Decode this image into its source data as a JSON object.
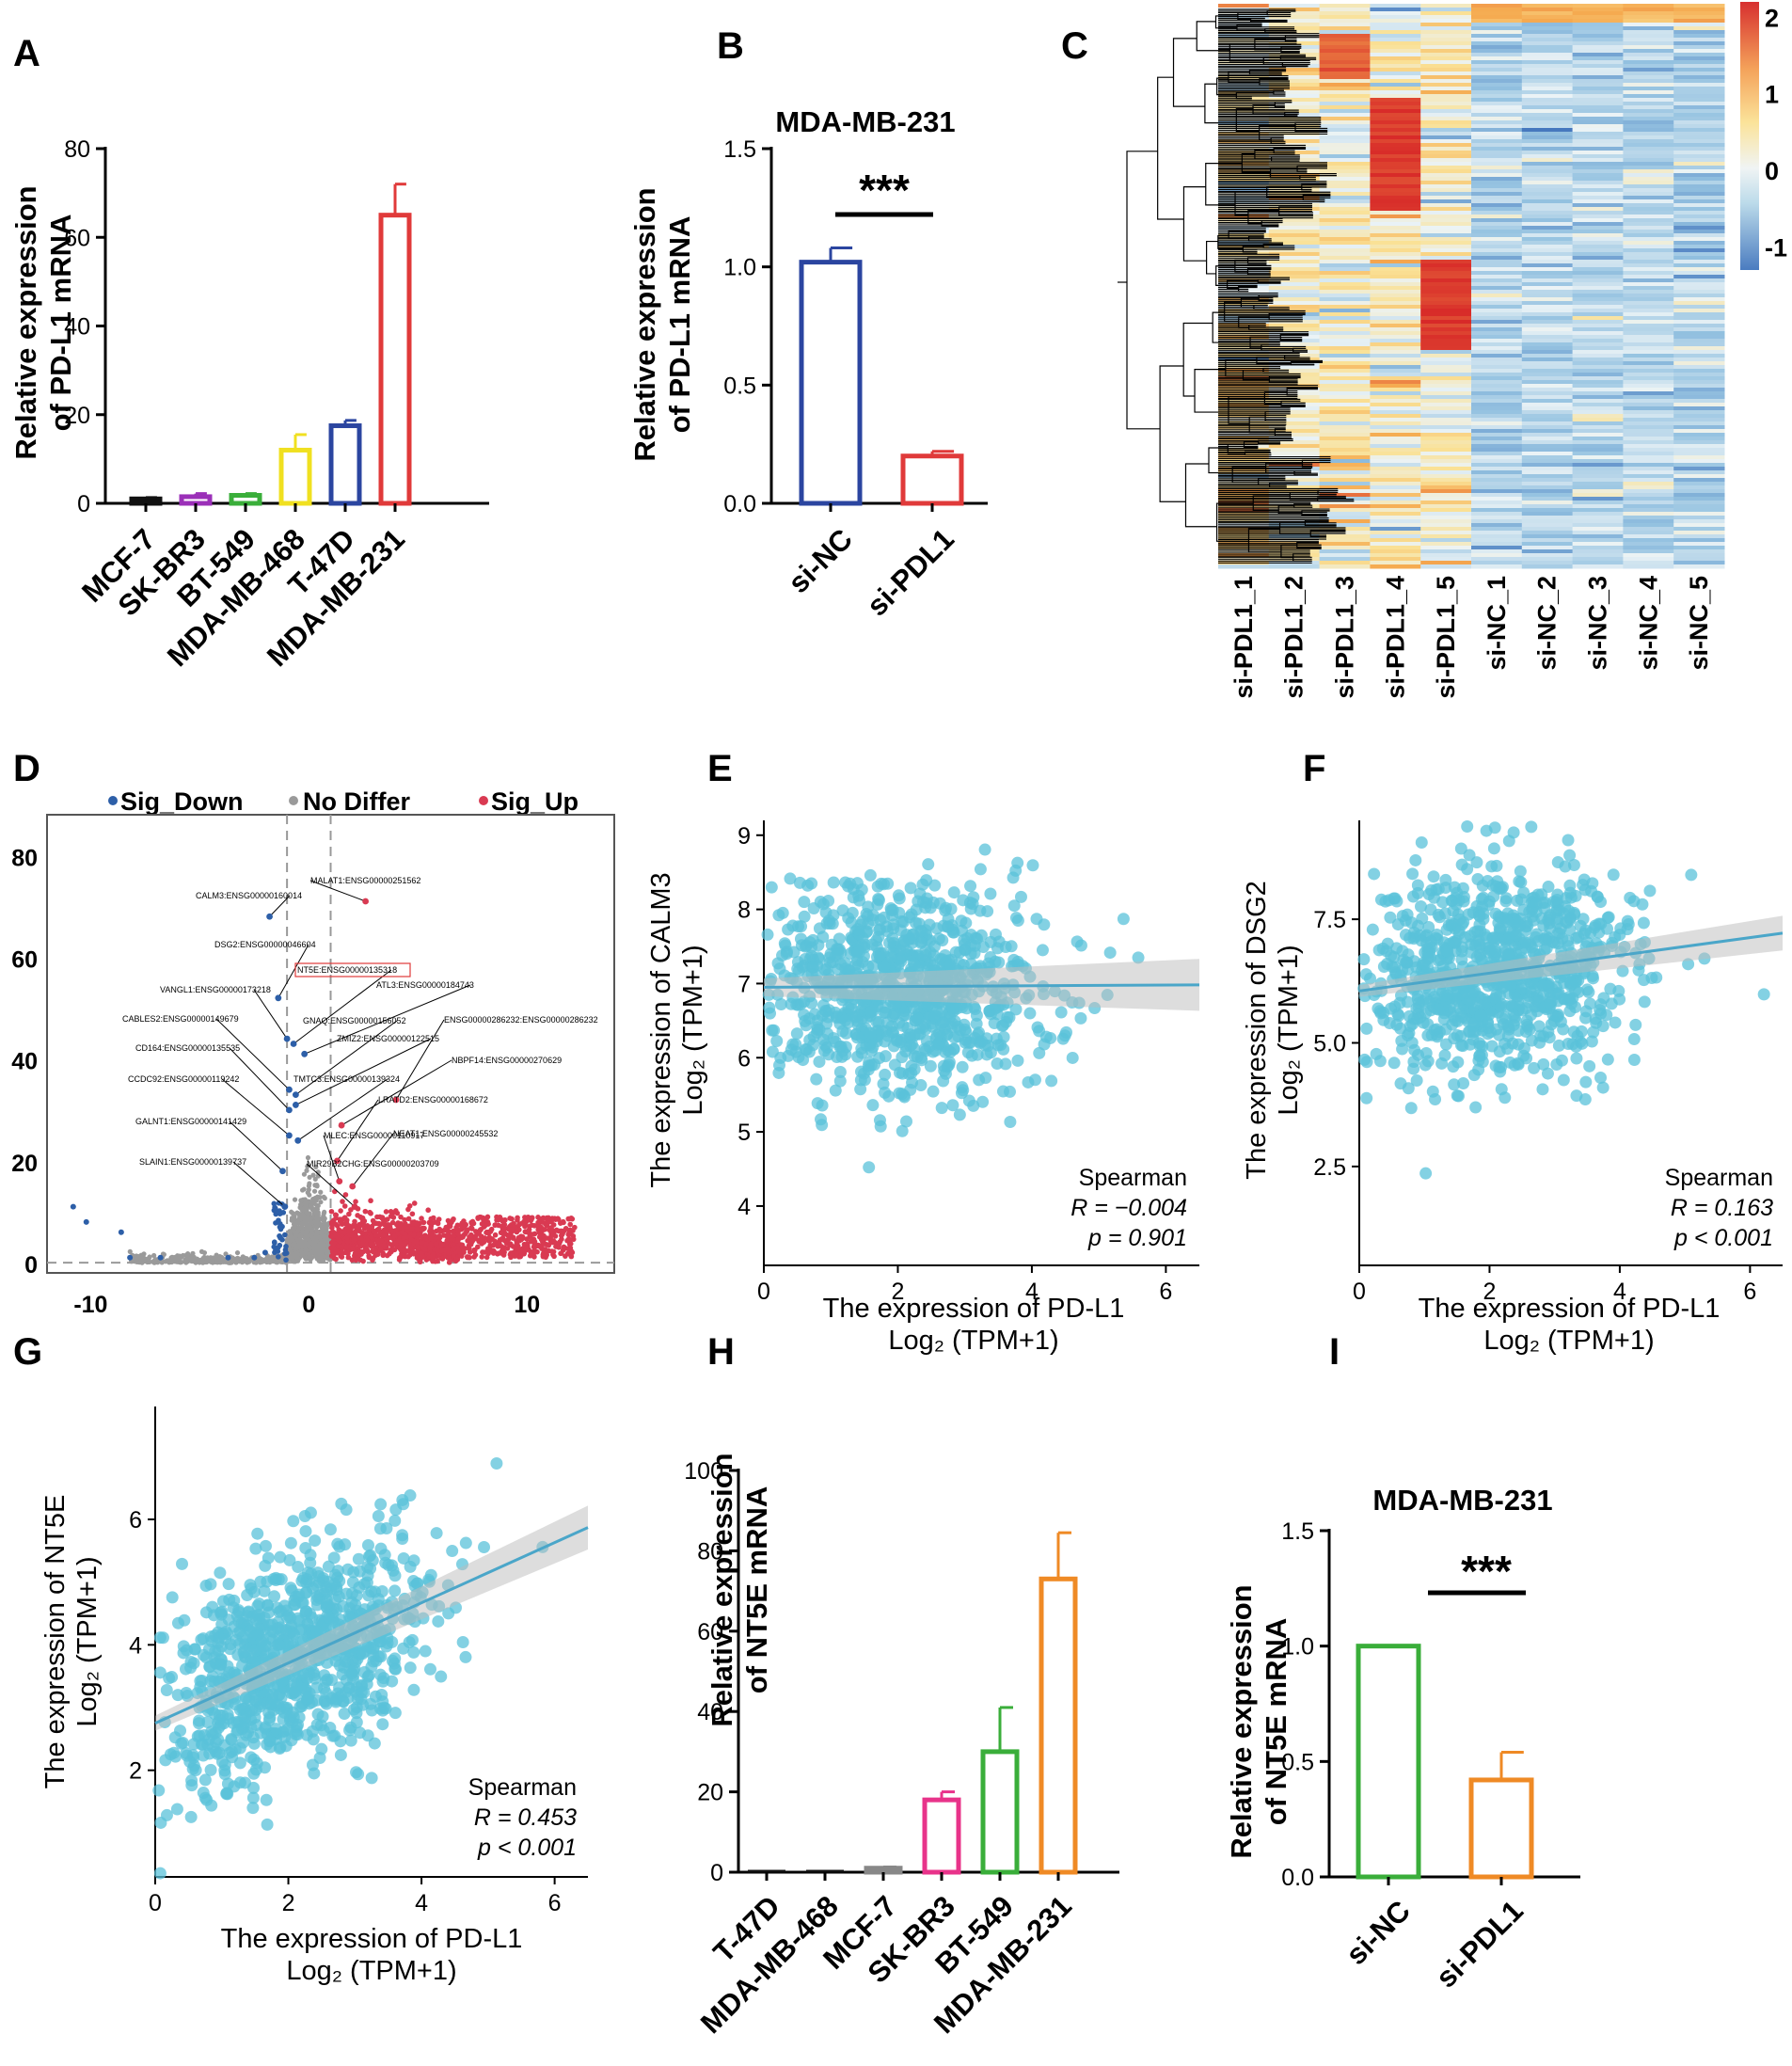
{
  "colors": {
    "scatter": "#59c1d9",
    "reg": "#4aa6c9",
    "sigDown": "#2d5fa8",
    "sigUp": "#d93a52",
    "noDiff": "#9a9a9a"
  },
  "panels": {
    "A": {
      "label": "A",
      "ylabel": [
        "Relative expression",
        "of PD-L1 mRNA"
      ]
    },
    "B": {
      "label": "B",
      "title": "MDA-MB-231",
      "sig": "***",
      "ylabel": [
        "Relative expression",
        "of PD-L1 mRNA"
      ]
    },
    "C": {
      "label": "C"
    },
    "D": {
      "label": "D",
      "legend": {
        "down": "Sig_Down",
        "none": "No Differ",
        "up": "Sig_Up"
      }
    },
    "E": {
      "label": "E",
      "ylabel": [
        "The expression of CALM3",
        "Log₂ (TPM+1)"
      ],
      "xlabel": [
        "The expression of PD-L1",
        "Log₂ (TPM+1)"
      ],
      "stat": [
        "Spearman",
        "R = −0.004",
        "p = 0.901"
      ]
    },
    "F": {
      "label": "F",
      "ylabel": [
        "The expression of DSG2",
        "Log₂ (TPM+1)"
      ],
      "xlabel": [
        "The expression of PD-L1",
        "Log₂ (TPM+1)"
      ],
      "stat": [
        "Spearman",
        "R = 0.163",
        "p < 0.001"
      ]
    },
    "G": {
      "label": "G",
      "ylabel": [
        "The expression of NT5E",
        "Log₂ (TPM+1)"
      ],
      "xlabel": [
        "The expression of PD-L1",
        "Log₂ (TPM+1)"
      ],
      "stat": [
        "Spearman",
        "R = 0.453",
        "p < 0.001"
      ]
    },
    "H": {
      "label": "H",
      "ylabel": [
        "Relative expression",
        "of NT5E mRNA"
      ]
    },
    "I": {
      "label": "I",
      "title": "MDA-MB-231",
      "sig": "***",
      "ylabel": [
        "Relative expression",
        "of NT5E mRNA"
      ]
    }
  },
  "chart_data": [
    {
      "panel": "A",
      "type": "bar",
      "categories": [
        "MCF-7",
        "SK-BR3",
        "BT-549",
        "MDA-MB-468",
        "T-47D",
        "MDA-MB-231"
      ],
      "values": [
        1,
        1.5,
        1.8,
        12,
        17.5,
        65
      ],
      "errors": [
        0.3,
        0.7,
        0.4,
        3.5,
        1.2,
        7
      ],
      "colors": [
        "#111111",
        "#9b30b8",
        "#3aae3a",
        "#f0e020",
        "#2b45a0",
        "#e03a3a"
      ],
      "yticks": [
        0,
        20,
        40,
        60,
        80
      ],
      "ylim": [
        0,
        80
      ]
    },
    {
      "panel": "B",
      "type": "bar",
      "categories": [
        "si-NC",
        "si-PDL1"
      ],
      "values": [
        1.02,
        0.2
      ],
      "errors": [
        0.06,
        0.02
      ],
      "colors": [
        "#2b45a0",
        "#e03a3a"
      ],
      "yticks": [
        0.0,
        0.5,
        1.0,
        1.5
      ],
      "ylim": [
        0,
        1.5
      ]
    },
    {
      "panel": "C",
      "type": "heatmap",
      "columns": [
        "si-PDL1_1",
        "si-PDL1_2",
        "si-PDL1_3",
        "si-PDL1_4",
        "si-PDL1_5",
        "si-NC_1",
        "si-NC_2",
        "si-NC_3",
        "si-NC_4",
        "si-NC_5"
      ],
      "colorbar_ticks": [
        2,
        1,
        0,
        -1
      ],
      "range": [
        -1.3,
        2.2
      ]
    },
    {
      "panel": "D",
      "type": "scatter",
      "kind": "volcano",
      "xticks": [
        -10,
        0,
        10
      ],
      "yticks": [
        0,
        20,
        40,
        60,
        80
      ],
      "xlim": [
        -12,
        14
      ],
      "ylim": [
        -2,
        88
      ],
      "labels": [
        {
          "text": "MALAT1:ENSG00000251562",
          "x": 2.6,
          "y": 71
        },
        {
          "text": "CALM3:ENSG00000160014",
          "x": -1.8,
          "y": 68
        },
        {
          "text": "DSG2:ENSG00000046604",
          "x": -1.4,
          "y": 52
        },
        {
          "text": "NT5E:ENSG00000135318",
          "x": -0.7,
          "y": 43
        },
        {
          "text": "VANGL1:ENSG00000173218",
          "x": -1.0,
          "y": 44
        },
        {
          "text": "ATL3:ENSG00000184743",
          "x": -0.2,
          "y": 41
        },
        {
          "text": "CABLES2:ENSG00000149679",
          "x": -0.9,
          "y": 34
        },
        {
          "text": "GNAQ:ENSG00000156052",
          "x": -0.6,
          "y": 33
        },
        {
          "text": "ENSG00000286232:ENSG00000286232",
          "x": 4.0,
          "y": 32
        },
        {
          "text": "ZMIZ2:ENSG00000122515",
          "x": -0.6,
          "y": 31
        },
        {
          "text": "CD164:ENSG00000135535",
          "x": -0.9,
          "y": 30
        },
        {
          "text": "NBPF14:ENSG00000270629",
          "x": 1.5,
          "y": 27
        },
        {
          "text": "CCDC92:ENSG00000119242",
          "x": -0.9,
          "y": 25
        },
        {
          "text": "TMTC3:ENSG00000139324",
          "x": -0.5,
          "y": 24
        },
        {
          "text": "LRATD2:ENSG00000168672",
          "x": 1.3,
          "y": 20
        },
        {
          "text": "GALNT1:ENSG00000141429",
          "x": -1.2,
          "y": 18
        },
        {
          "text": "MLEC:ENSG00000110917",
          "x": 1.4,
          "y": 16
        },
        {
          "text": "NEAT1:ENSG00000245532",
          "x": 2.0,
          "y": 15
        },
        {
          "text": "SLAIN1:ENSG00000139737",
          "x": -1.1,
          "y": 11
        },
        {
          "text": "MIR29B2CHG:ENSG00000203709",
          "x": 2.1,
          "y": 11
        }
      ]
    },
    {
      "panel": "E",
      "type": "scatter",
      "xticks": [
        0,
        2,
        4,
        6
      ],
      "yticks": [
        4,
        5,
        6,
        7,
        8,
        9
      ],
      "xlim": [
        0,
        6.5
      ],
      "ylim": [
        3.2,
        9.2
      ],
      "fit": {
        "slope": 0.005,
        "intercept": 6.95
      }
    },
    {
      "panel": "F",
      "type": "scatter",
      "xticks": [
        0,
        2,
        4,
        6
      ],
      "yticks": [
        2.5,
        5.0,
        7.5
      ],
      "xlim": [
        0,
        6.5
      ],
      "ylim": [
        0.5,
        9.5
      ],
      "fit": {
        "slope": 0.18,
        "intercept": 6.05
      }
    },
    {
      "panel": "G",
      "type": "scatter",
      "xticks": [
        0,
        2,
        4,
        6
      ],
      "yticks": [
        2,
        4,
        6
      ],
      "xlim": [
        0,
        6.5
      ],
      "ylim": [
        0.3,
        7.8
      ],
      "fit": {
        "slope": 0.48,
        "intercept": 2.75
      }
    },
    {
      "panel": "H",
      "type": "bar",
      "categories": [
        "T-47D",
        "MDA-MB-468",
        "MCF-7",
        "SK-BR3",
        "BT-549",
        "MDA-MB-231"
      ],
      "values": [
        0,
        0,
        1,
        18,
        30,
        73
      ],
      "errors": [
        0,
        0,
        0.3,
        2,
        11,
        11.5
      ],
      "colors": [
        "#111111",
        "#111111",
        "#888888",
        "#e8338a",
        "#3aae3a",
        "#ef8a25"
      ],
      "yticks": [
        0,
        20,
        40,
        60,
        80,
        100
      ],
      "ylim": [
        0,
        100
      ]
    },
    {
      "panel": "I",
      "type": "bar",
      "categories": [
        "si-NC",
        "si-PDL1"
      ],
      "values": [
        1.0,
        0.42
      ],
      "errors": [
        0.0,
        0.12
      ],
      "colors": [
        "#3aae3a",
        "#ef8a25"
      ],
      "yticks": [
        0.0,
        0.5,
        1.0,
        1.5
      ],
      "ylim": [
        0,
        1.5
      ]
    }
  ]
}
